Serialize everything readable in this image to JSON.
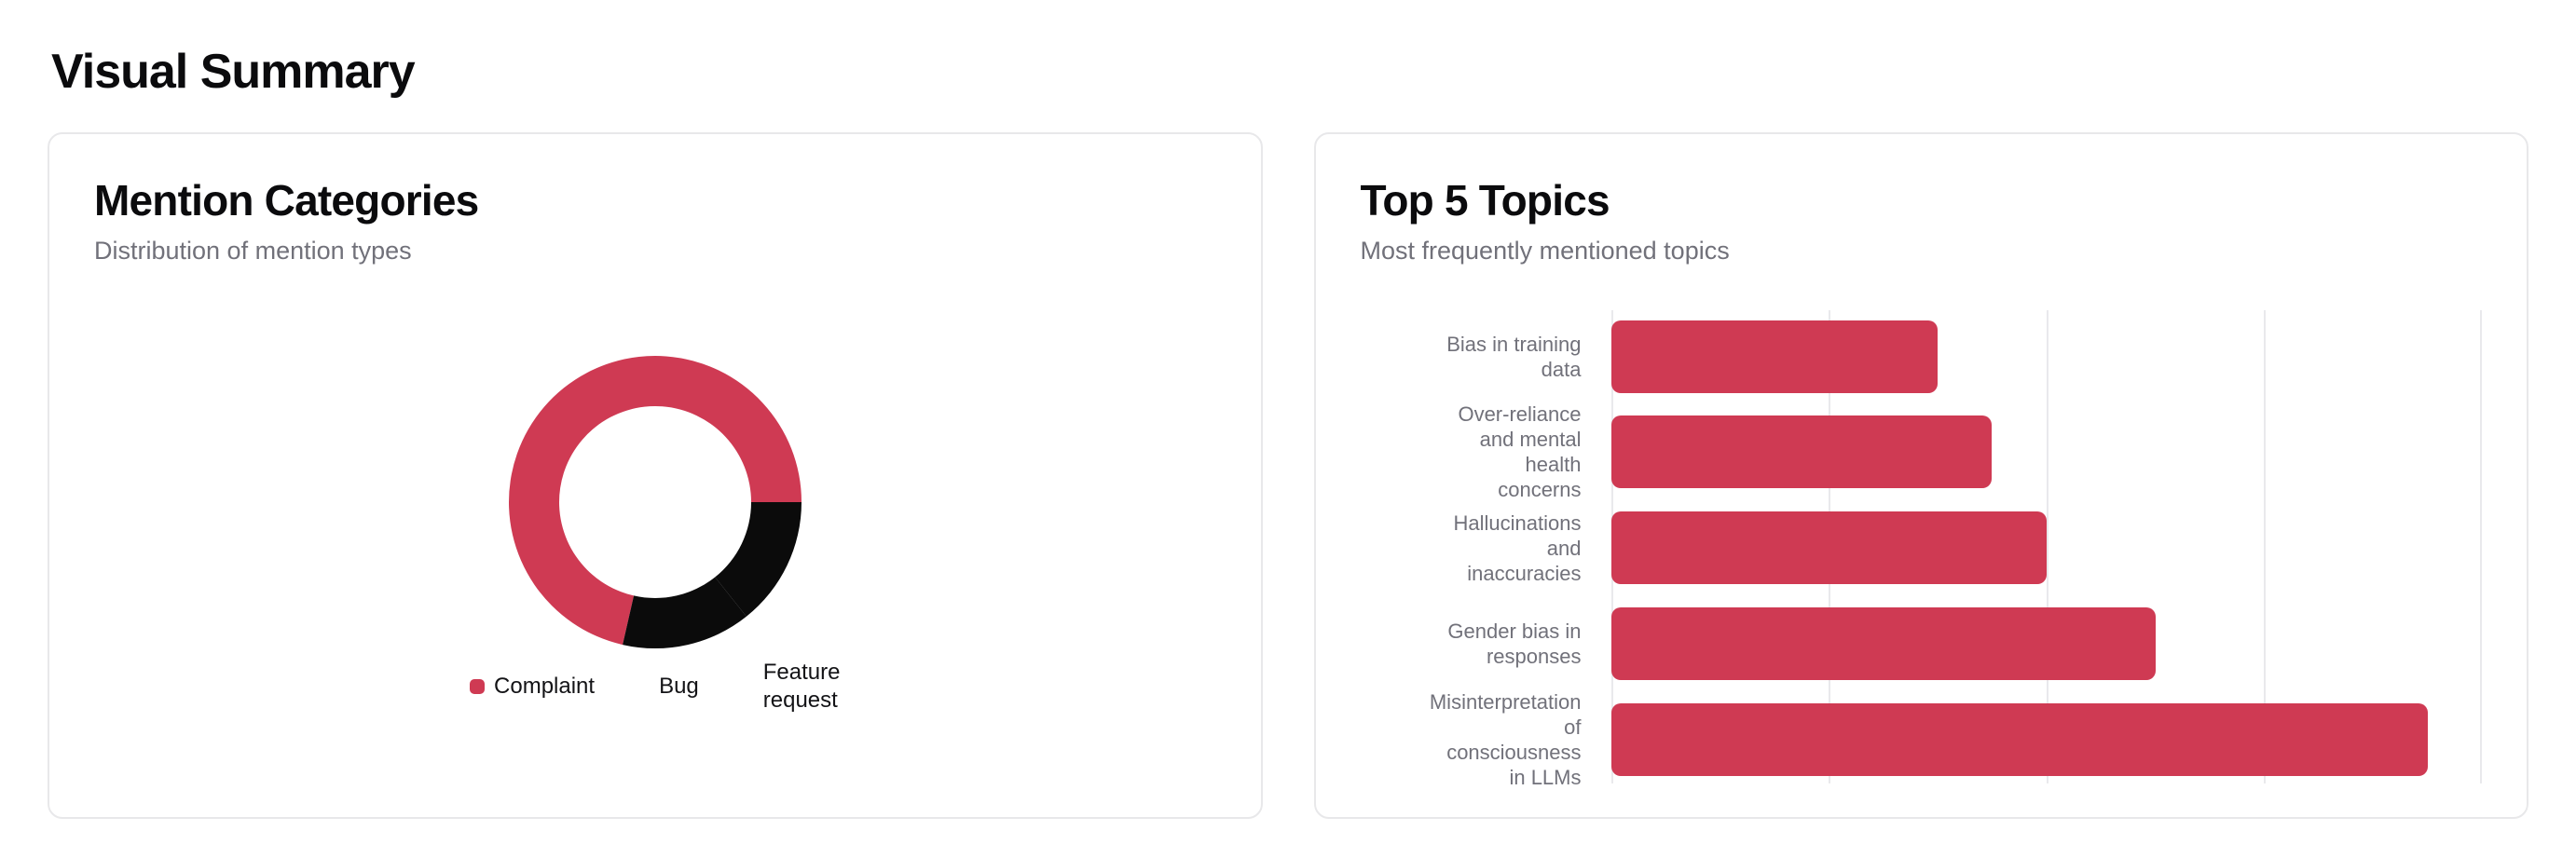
{
  "page": {
    "title": "Visual Summary"
  },
  "cards": {
    "mention_categories": {
      "title": "Mention Categories",
      "subtitle": "Distribution of mention types"
    },
    "top_topics": {
      "title": "Top 5 Topics",
      "subtitle": "Most frequently mentioned topics"
    }
  },
  "chart_data": [
    {
      "type": "pie",
      "variant": "donut",
      "title": "Mention Categories",
      "labels": [
        "Complaint",
        "Bug",
        "Feature request"
      ],
      "values": [
        5,
        1,
        1
      ],
      "approx_percents": [
        71.4,
        14.3,
        14.3
      ],
      "colors": [
        "#cf3a53",
        "#0b0b0b",
        "#0b0b0b"
      ],
      "start_angle_deg": 0,
      "direction": "counterclockwise",
      "inner_radius_ratio": 0.656,
      "legend_position": "bottom",
      "legend": [
        {
          "lines": [
            "Complaint"
          ],
          "swatch_color": "#cf3a53"
        },
        {
          "lines": [
            "Bug"
          ],
          "swatch_color": "#ffffff"
        },
        {
          "lines": [
            "Feature",
            "request"
          ],
          "swatch_color": "#ffffff"
        }
      ]
    },
    {
      "type": "bar",
      "orientation": "horizontal",
      "title": "Top 5 Topics",
      "categories": [
        "Bias in training data",
        "Over-reliance and mental health concerns",
        "Hallucinations and inaccuracies",
        "Gender bias in responses",
        "Misinterpretation of consciousness in LLMs"
      ],
      "category_label_lines": [
        [
          "Bias in training",
          "data"
        ],
        [
          "Over-reliance",
          "and mental",
          "health",
          "concerns"
        ],
        [
          "Hallucinations",
          "and",
          "inaccuracies"
        ],
        [
          "Gender bias in",
          "responses"
        ],
        [
          "Misinterpretation",
          "of",
          "consciousness",
          "in LLMs"
        ]
      ],
      "values": [
        6,
        7,
        8,
        10,
        15
      ],
      "xlim": [
        0,
        16
      ],
      "xticks": [
        0,
        4,
        8,
        12,
        16
      ],
      "tick_value_labels_visible": false,
      "grid": true,
      "bar_color": "#cf3a53"
    }
  ],
  "colors": {
    "accent_red": "#cf3a53",
    "pie_black": "#0b0b0b",
    "card_border": "#e8e8ea",
    "grid_line": "#e9e9ec",
    "text_primary": "#0b0b0d",
    "text_muted": "#71717a",
    "background": "#ffffff"
  }
}
